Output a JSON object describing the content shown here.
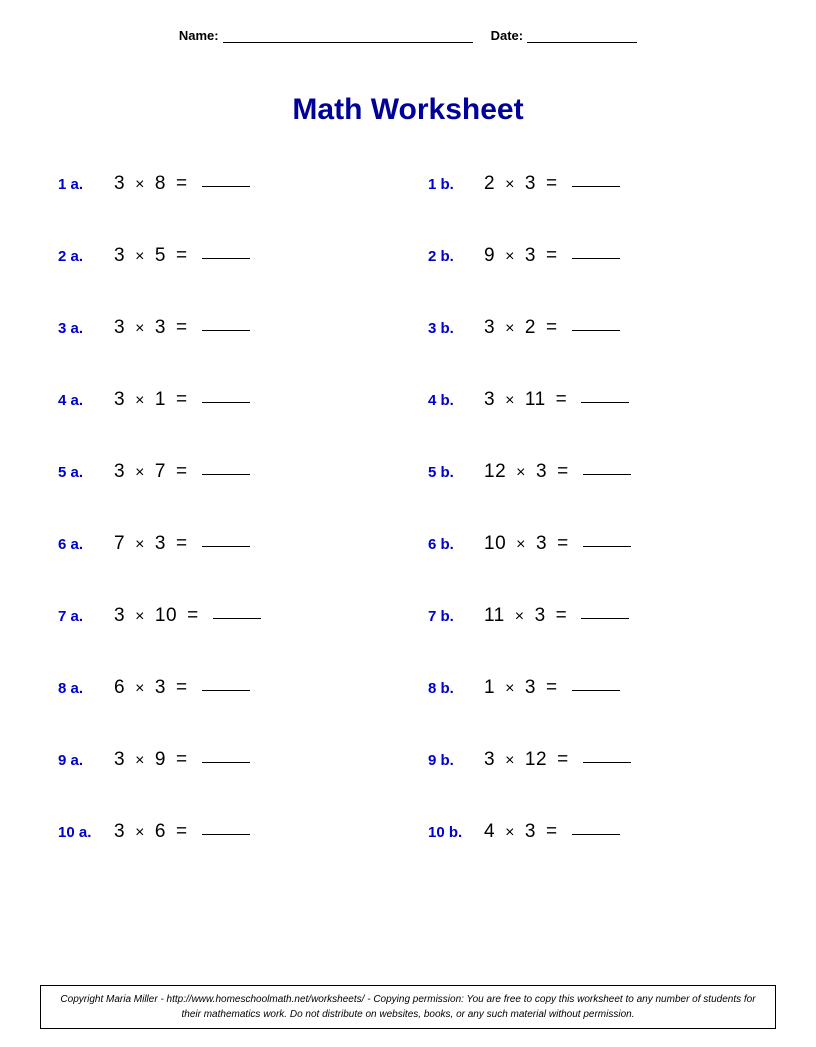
{
  "header": {
    "name_label": "Name:",
    "date_label": "Date:"
  },
  "title": "Math Worksheet",
  "label_color": "#0000cc",
  "title_color": "#000099",
  "expr_color": "#000000",
  "problems_a": [
    {
      "num": "1 a.",
      "a": "3",
      "b": "8"
    },
    {
      "num": "2 a.",
      "a": "3",
      "b": "5"
    },
    {
      "num": "3 a.",
      "a": "3",
      "b": "3"
    },
    {
      "num": "4 a.",
      "a": "3",
      "b": "1"
    },
    {
      "num": "5 a.",
      "a": "3",
      "b": "7"
    },
    {
      "num": "6 a.",
      "a": "7",
      "b": "3"
    },
    {
      "num": "7 a.",
      "a": "3",
      "b": "10"
    },
    {
      "num": "8 a.",
      "a": "6",
      "b": "3"
    },
    {
      "num": "9 a.",
      "a": "3",
      "b": "9"
    },
    {
      "num": "10 a.",
      "a": "3",
      "b": "6"
    }
  ],
  "problems_b": [
    {
      "num": "1 b.",
      "a": "2",
      "b": "3"
    },
    {
      "num": "2 b.",
      "a": "9",
      "b": "3"
    },
    {
      "num": "3 b.",
      "a": "3",
      "b": "2"
    },
    {
      "num": "4 b.",
      "a": "3",
      "b": "11"
    },
    {
      "num": "5 b.",
      "a": "12",
      "b": "3"
    },
    {
      "num": "6 b.",
      "a": "10",
      "b": "3"
    },
    {
      "num": "7 b.",
      "a": "11",
      "b": "3"
    },
    {
      "num": "8 b.",
      "a": "1",
      "b": "3"
    },
    {
      "num": "9 b.",
      "a": "3",
      "b": "12"
    },
    {
      "num": "10 b.",
      "a": "4",
      "b": "3"
    }
  ],
  "operator": "×",
  "equals": "=",
  "footer": "Copyright Maria Miller - http://www.homeschoolmath.net/worksheets/ - Copying permission: You are free to copy this worksheet to any number of students for their mathematics work. Do not distribute on websites, books, or any such material without permission."
}
